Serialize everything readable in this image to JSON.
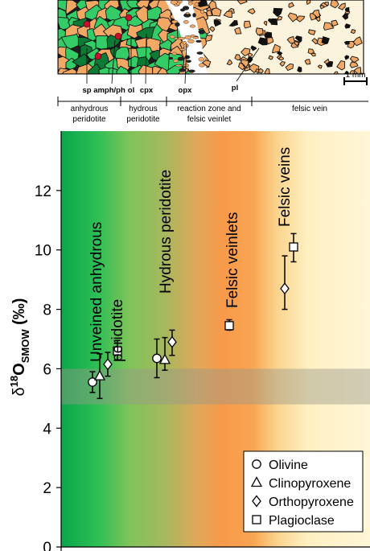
{
  "thin_section": {
    "mineral_labels": [
      "sp",
      "amph/ph",
      "ol",
      "cpx",
      "opx",
      "pl"
    ],
    "scale_bar": "1 mm",
    "zone_labels": [
      [
        "anhydrous",
        "peridotite"
      ],
      [
        "hydrous",
        "peridotite"
      ],
      [
        "reaction zone and",
        "felsic veinlet"
      ],
      [
        "felsic vein"
      ]
    ]
  },
  "colors": {
    "olivine_green": "#33cc66",
    "dark_green": "#0d7a36",
    "opx_tan": "#f2a865",
    "plagioclase_cream": "#fbf3dc",
    "red_spinel": "#c8102e",
    "orange_zone": "#f79a4a",
    "yellow_zone": "#fff6cf",
    "normal_mantle_band": "#9a9a8a"
  },
  "chart_data": {
    "type": "scatter",
    "ylabel": "δ18OSMOW (‰)",
    "ylabel_parts": {
      "delta": "δ",
      "sup": "18",
      "main": "O",
      "sub": "SMOW",
      "unit": " (‰)"
    },
    "ylim": [
      0,
      14
    ],
    "yticks": [
      0,
      2,
      4,
      6,
      8,
      10,
      12
    ],
    "grid": false,
    "normal_mantle_band": [
      4.8,
      6.0
    ],
    "groups": [
      {
        "label": [
          "Unveined anhydrous",
          "peridotite"
        ],
        "points": [
          {
            "mineral": "Olivine",
            "value": 5.55,
            "err": [
              5.2,
              5.9
            ]
          },
          {
            "mineral": "Clinopyroxene",
            "value": 5.75,
            "err": [
              5.0,
              6.5
            ]
          },
          {
            "mineral": "Orthopyroxene",
            "value": 6.15,
            "err": [
              5.75,
              6.55
            ]
          },
          {
            "mineral": "Plagioclase",
            "value": 6.6,
            "err": [
              6.3,
              6.95
            ]
          }
        ]
      },
      {
        "label": [
          "Hydrous peridotite"
        ],
        "points": [
          {
            "mineral": "Olivine",
            "value": 6.35,
            "err": [
              5.7,
              7.0
            ]
          },
          {
            "mineral": "Clinopyroxene",
            "value": 6.3,
            "err": [
              5.95,
              7.05
            ]
          },
          {
            "mineral": "Orthopyroxene",
            "value": 6.9,
            "err": [
              6.45,
              7.3
            ]
          }
        ]
      },
      {
        "label": [
          "Felsic veinlets"
        ],
        "points": [
          {
            "mineral": "Plagioclase",
            "value": 7.45,
            "err": [
              7.3,
              7.65
            ]
          }
        ]
      },
      {
        "label": [
          "Felsic veins"
        ],
        "points": [
          {
            "mineral": "Orthopyroxene",
            "value": 8.7,
            "err": [
              8.0,
              9.8
            ]
          },
          {
            "mineral": "Plagioclase",
            "value": 10.1,
            "err": [
              9.6,
              10.55
            ]
          }
        ]
      }
    ],
    "legend": {
      "placement": "bottom-right",
      "entries": [
        {
          "symbol": "circle",
          "label": "Olivine"
        },
        {
          "symbol": "triangle",
          "label": "Clinopyroxene"
        },
        {
          "symbol": "diamond",
          "label": "Orthopyroxene"
        },
        {
          "symbol": "square",
          "label": "Plagioclase"
        }
      ]
    }
  }
}
